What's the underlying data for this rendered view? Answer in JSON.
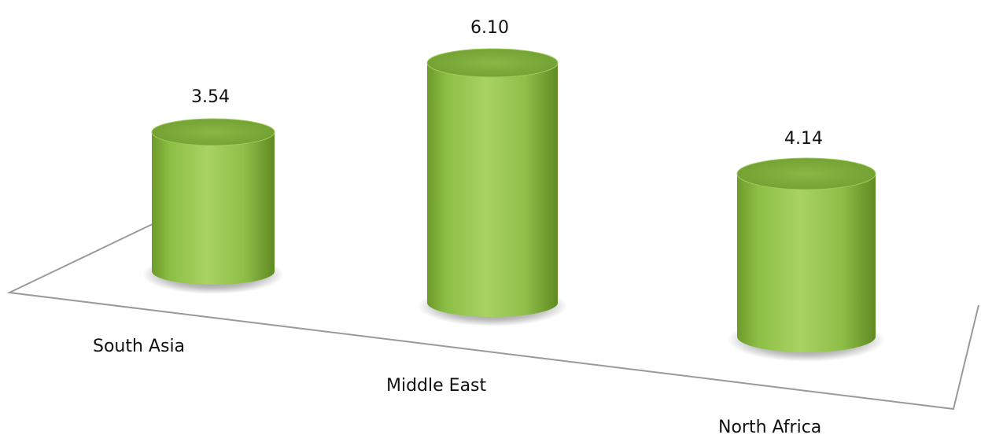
{
  "chart_data": {
    "type": "bar",
    "style": "3d-cylinder",
    "categories": [
      "South Asia",
      "Middle East",
      "North Africa"
    ],
    "values": [
      3.54,
      6.1,
      4.14
    ],
    "data_labels": [
      "3.54",
      "6.10",
      "4.14"
    ],
    "title": "",
    "xlabel": "",
    "ylabel": "",
    "ylim": [
      0,
      6.5
    ],
    "grid": false,
    "legend": "none",
    "colors": {
      "bar_light": "#a8d060",
      "bar_mid": "#8cbf45",
      "bar_dark": "#5f8a22",
      "top_face": "#7fae3a",
      "floor_line": "#9a9a9a"
    }
  }
}
